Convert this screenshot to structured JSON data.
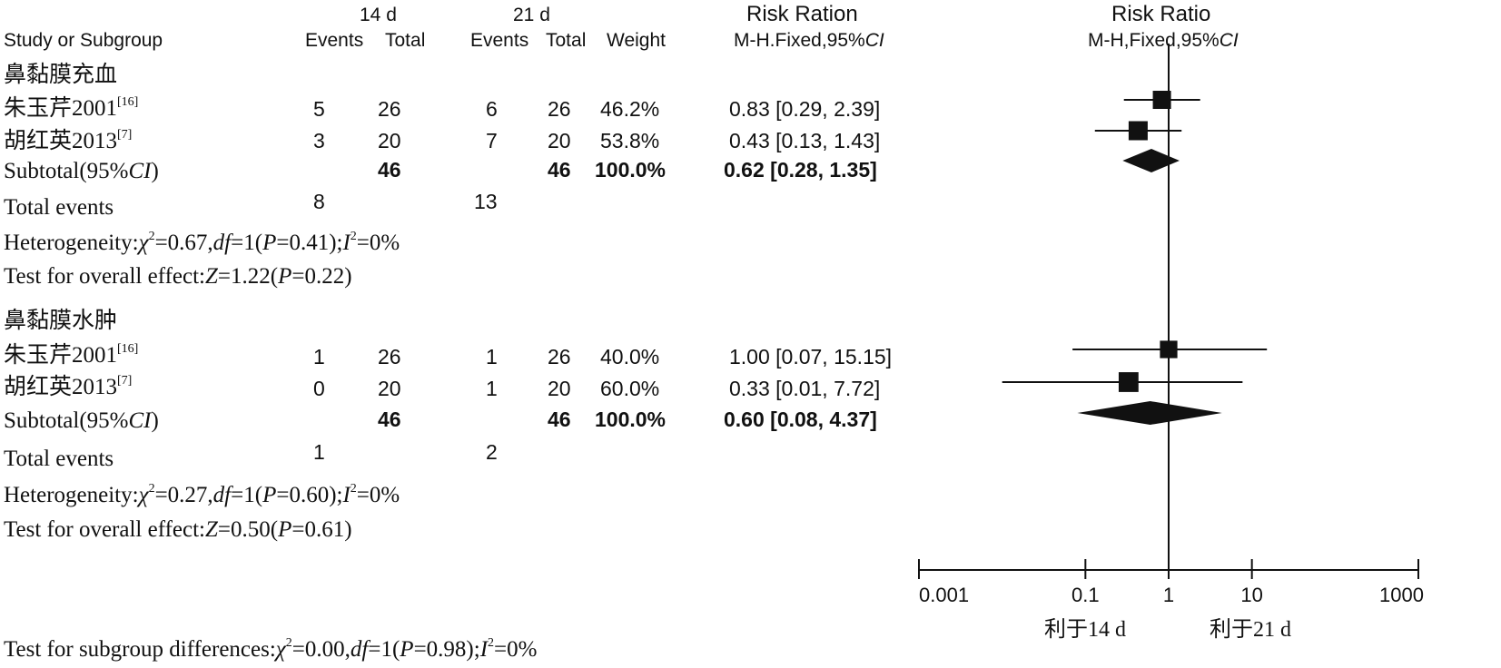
{
  "header": {
    "group1_label": "14 d",
    "group2_label": "21 d",
    "study_col": "Study or Subgroup",
    "events_label": "Events",
    "total_label": "Total",
    "weight_label": "Weight",
    "rr_col_title": "Risk Ration",
    "rr_col_method": "M-H.Fixed,95%",
    "rr_col_ci": "CI",
    "plot_title": "Risk Ratio",
    "plot_method": "M-H,Fixed,95%",
    "plot_ci": "CI"
  },
  "chart_data": {
    "type": "forest",
    "xscale": "log",
    "xlim": [
      0.001,
      1000
    ],
    "x_ticks": [
      0.001,
      0.1,
      1,
      10,
      1000
    ],
    "x_tick_labels": [
      "0.001",
      "0.1",
      "1",
      "10",
      "1000"
    ],
    "favours_left": "利于14 d",
    "favours_right": "利于21 d",
    "subgroups": [
      {
        "name": "鼻黏膜充血",
        "studies": [
          {
            "label": "朱玉芹2001",
            "ref": "[16]",
            "e1": "5",
            "n1": "26",
            "e2": "6",
            "n2": "26",
            "weight": "46.2%",
            "rr_text": "0.83 [0.29, 2.39]",
            "rr": 0.83,
            "lo": 0.29,
            "hi": 2.39
          },
          {
            "label": "胡红英2013",
            "ref": "[7]",
            "e1": "3",
            "n1": "20",
            "e2": "7",
            "n2": "20",
            "weight": "53.8%",
            "rr_text": "0.43 [0.13, 1.43]",
            "rr": 0.43,
            "lo": 0.13,
            "hi": 1.43
          }
        ],
        "subtotal": {
          "label": "Subtotal",
          "ci_prefix": "(95%",
          "ci_word": "CI",
          "ci_suffix": ")",
          "n1": "46",
          "n2": "46",
          "weight": "100.0%",
          "rr_text": "0.62 [0.28, 1.35]",
          "rr": 0.62,
          "lo": 0.28,
          "hi": 1.35
        },
        "total_events": {
          "label": "Total events",
          "e1": "8",
          "e2": "13"
        },
        "heterogeneity": {
          "prefix": "Heterogeneity:",
          "chi_symbol": "χ",
          "chi_value": "=0.67,",
          "df_symbol": "df",
          "df_value": "=1(",
          "p_symbol": "P",
          "p_value": "=0.41);",
          "i_symbol": "I",
          "i_value": "=0%"
        },
        "overall": {
          "prefix": "Test for overall effect:",
          "z_symbol": "Z",
          "z_value": "=1.22(",
          "p_symbol": "P",
          "p_value": "=0.22)"
        }
      },
      {
        "name": "鼻黏膜水肿",
        "studies": [
          {
            "label": "朱玉芹2001",
            "ref": "[16]",
            "e1": "1",
            "n1": "26",
            "e2": "1",
            "n2": "26",
            "weight": "40.0%",
            "rr_text": "1.00 [0.07, 15.15]",
            "rr": 1.0,
            "lo": 0.07,
            "hi": 15.15
          },
          {
            "label": "胡红英2013",
            "ref": "[7]",
            "e1": "0",
            "n1": "20",
            "e2": "1",
            "n2": "20",
            "weight": "60.0%",
            "rr_text": "0.33 [0.01, 7.72]",
            "rr": 0.33,
            "lo": 0.01,
            "hi": 7.72
          }
        ],
        "subtotal": {
          "label": "Subtotal",
          "ci_prefix": "(95%",
          "ci_word": "CI",
          "ci_suffix": ")",
          "n1": "46",
          "n2": "46",
          "weight": "100.0%",
          "rr_text": "0.60 [0.08, 4.37]",
          "rr": 0.6,
          "lo": 0.08,
          "hi": 4.37
        },
        "total_events": {
          "label": "Total events",
          "e1": "1",
          "e2": "2"
        },
        "heterogeneity": {
          "prefix": "Heterogeneity:",
          "chi_symbol": "χ",
          "chi_value": "=0.27,",
          "df_symbol": "df",
          "df_value": "=1(",
          "p_symbol": "P",
          "p_value": "=0.60);",
          "i_symbol": "I",
          "i_value": "=0%"
        },
        "overall": {
          "prefix": "Test for overall effect:",
          "z_symbol": "Z",
          "z_value": "=0.50(",
          "p_symbol": "P",
          "p_value": "=0.61)"
        }
      }
    ],
    "subgroup_test": {
      "prefix": "Test for subgroup differences:",
      "chi_symbol": "χ",
      "chi_value": "=0.00,",
      "df_symbol": "df",
      "df_value": "=1(",
      "p_symbol": "P",
      "p_value": "=0.98);",
      "i_symbol": "I",
      "i_value": "=0%"
    }
  }
}
